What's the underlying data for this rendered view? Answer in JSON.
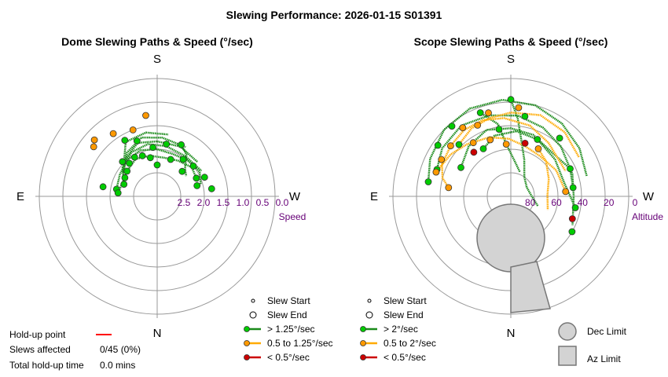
{
  "title": "Slewing Performance: 2026-01-15 S01391",
  "colors": {
    "fast": "#00cc00",
    "mid": "#ff9900",
    "slow": "#cc0000",
    "path_green": "#1a8a1a",
    "path_orange": "#ffaa00",
    "limit_fill": "#d3d3d3",
    "tick": "#660077"
  },
  "chart_data": [
    {
      "type": "polar-scatter",
      "title": "Dome Slewing Paths & Speed (°/sec)",
      "cardinals": {
        "top": "S",
        "bottom": "N",
        "left": "E",
        "right": "W"
      },
      "radial_axis_label": "Speed",
      "radial_ticks": [
        "2.5",
        "2.0",
        "1.5",
        "1.0",
        "0.5",
        "0.0"
      ],
      "legend": [
        {
          "label": "Slew Start",
          "kind": "start"
        },
        {
          "label": "Slew End",
          "kind": "end"
        },
        {
          "label": "> 1.25°/sec",
          "kind": "fast"
        },
        {
          "label": "0.5 to 1.25°/sec",
          "kind": "mid"
        },
        {
          "label": "< 0.5°/sec",
          "kind": "slow"
        }
      ],
      "points": [
        {
          "az": 180,
          "speed": 2.2,
          "cls": "fast"
        },
        {
          "az": 170,
          "speed": 2.0,
          "cls": "fast"
        },
        {
          "az": 160,
          "speed": 1.9,
          "cls": "fast"
        },
        {
          "az": 150,
          "speed": 1.85,
          "cls": "fast"
        },
        {
          "az": 140,
          "speed": 1.9,
          "cls": "fast"
        },
        {
          "az": 130,
          "speed": 2.0,
          "cls": "fast"
        },
        {
          "az": 120,
          "speed": 2.05,
          "cls": "fast"
        },
        {
          "az": 110,
          "speed": 2.1,
          "cls": "fast"
        },
        {
          "az": 100,
          "speed": 1.95,
          "cls": "fast"
        },
        {
          "az": 95,
          "speed": 2.0,
          "cls": "fast"
        },
        {
          "az": 200,
          "speed": 2.0,
          "cls": "fast"
        },
        {
          "az": 215,
          "speed": 1.85,
          "cls": "fast"
        },
        {
          "az": 230,
          "speed": 1.8,
          "cls": "fast"
        },
        {
          "az": 245,
          "speed": 1.9,
          "cls": "fast"
        },
        {
          "az": 255,
          "speed": 1.95,
          "cls": "fast"
        },
        {
          "az": 262,
          "speed": 1.6,
          "cls": "fast"
        },
        {
          "az": 248,
          "speed": 1.7,
          "cls": "fast"
        },
        {
          "az": 190,
          "speed": 1.65,
          "cls": "fast"
        },
        {
          "az": 175,
          "speed": 1.75,
          "cls": "fast"
        },
        {
          "az": 135,
          "speed": 1.75,
          "cls": "fast"
        },
        {
          "az": 160,
          "speed": 1.5,
          "cls": "fast"
        },
        {
          "az": 205,
          "speed": 1.55,
          "cls": "fast"
        },
        {
          "az": 225,
          "speed": 2.1,
          "cls": "fast"
        },
        {
          "az": 100,
          "speed": 1.6,
          "cls": "fast"
        },
        {
          "az": 150,
          "speed": 1.35,
          "cls": "fast"
        },
        {
          "az": 145,
          "speed": 1.05,
          "cls": "mid"
        },
        {
          "az": 128,
          "speed": 0.95,
          "cls": "mid"
        },
        {
          "az": 132,
          "speed": 0.85,
          "cls": "mid"
        },
        {
          "az": 172,
          "speed": 0.92,
          "cls": "mid"
        },
        {
          "az": 160,
          "speed": 1.2,
          "cls": "mid"
        }
      ],
      "paths": [
        {
          "cls": "fast",
          "pts": [
            [
              95,
              2.0
            ],
            [
              110,
              2.05
            ],
            [
              130,
              2.0
            ],
            [
              150,
              1.9
            ],
            [
              170,
              1.95
            ],
            [
              190,
              2.0
            ],
            [
              210,
              1.95
            ],
            [
              230,
              1.85
            ],
            [
              250,
              1.9
            ]
          ]
        },
        {
          "cls": "fast",
          "pts": [
            [
              100,
              1.95
            ],
            [
              120,
              1.9
            ],
            [
              140,
              1.8
            ],
            [
              160,
              1.75
            ],
            [
              180,
              1.8
            ],
            [
              200,
              1.85
            ],
            [
              220,
              1.8
            ],
            [
              240,
              1.75
            ],
            [
              255,
              1.85
            ]
          ]
        },
        {
          "cls": "fast",
          "pts": [
            [
              110,
              2.1
            ],
            [
              130,
              1.85
            ],
            [
              150,
              1.7
            ],
            [
              170,
              1.65
            ],
            [
              190,
              1.7
            ],
            [
              215,
              1.75
            ],
            [
              240,
              1.7
            ]
          ]
        },
        {
          "cls": "fast",
          "pts": [
            [
              120,
              2.0
            ],
            [
              140,
              1.75
            ],
            [
              160,
              1.55
            ],
            [
              180,
              1.6
            ],
            [
              205,
              1.6
            ],
            [
              230,
              1.65
            ]
          ]
        },
        {
          "cls": "fast",
          "pts": [
            [
              125,
              1.95
            ],
            [
              145,
              1.65
            ],
            [
              165,
              1.45
            ],
            [
              185,
              1.5
            ],
            [
              210,
              1.55
            ]
          ]
        },
        {
          "cls": "fast",
          "pts": [
            [
              135,
              1.8
            ],
            [
              150,
              1.4
            ],
            [
              170,
              1.35
            ],
            [
              190,
              1.4
            ]
          ]
        },
        {
          "cls": "fast",
          "pts": [
            [
              205,
              1.55
            ],
            [
              215,
              1.7
            ],
            [
              225,
              2.0
            ],
            [
              235,
              2.1
            ]
          ]
        }
      ]
    },
    {
      "type": "polar-scatter",
      "title": "Scope Slewing Paths & Speed (°/sec)",
      "cardinals": {
        "top": "S",
        "bottom": "N",
        "left": "E",
        "right": "W"
      },
      "radial_axis_label": "Altitude",
      "radial_ticks": [
        "80",
        "60",
        "40",
        "20",
        "0"
      ],
      "legend": [
        {
          "label": "Slew Start",
          "kind": "start"
        },
        {
          "label": "Slew End",
          "kind": "end"
        },
        {
          "label": "> 2°/sec",
          "kind": "fast"
        },
        {
          "label": "0.5 to 2°/sec",
          "kind": "mid"
        },
        {
          "label": "< 0.5°/sec",
          "kind": "slow"
        }
      ],
      "limits": [
        {
          "label": "Dec Limit",
          "kind": "dec"
        },
        {
          "label": "Az Limit",
          "kind": "az"
        }
      ],
      "points": [
        {
          "az": 180,
          "alt": 16,
          "cls": "fast"
        },
        {
          "az": 160,
          "alt": 22,
          "cls": "fast"
        },
        {
          "az": 140,
          "alt": 20,
          "cls": "fast"
        },
        {
          "az": 125,
          "alt": 22,
          "cls": "fast"
        },
        {
          "az": 110,
          "alt": 30,
          "cls": "fast"
        },
        {
          "az": 120,
          "alt": 46,
          "cls": "fast"
        },
        {
          "az": 150,
          "alt": 48,
          "cls": "fast"
        },
        {
          "az": 170,
          "alt": 38,
          "cls": "fast"
        },
        {
          "az": 190,
          "alt": 28,
          "cls": "fast"
        },
        {
          "az": 220,
          "alt": 32,
          "cls": "fast"
        },
        {
          "az": 245,
          "alt": 40,
          "cls": "fast"
        },
        {
          "az": 262,
          "alt": 42,
          "cls": "fast"
        },
        {
          "az": 280,
          "alt": 40,
          "cls": "fast"
        },
        {
          "az": 300,
          "alt": 36,
          "cls": "fast"
        },
        {
          "az": 100,
          "alt": 26,
          "cls": "fast"
        },
        {
          "az": 205,
          "alt": 42,
          "cls": "fast"
        },
        {
          "az": 135,
          "alt": 34,
          "cls": "fast"
        },
        {
          "az": 155,
          "alt": 30,
          "cls": "mid"
        },
        {
          "az": 145,
          "alt": 26,
          "cls": "mid"
        },
        {
          "az": 165,
          "alt": 24,
          "cls": "mid"
        },
        {
          "az": 185,
          "alt": 22,
          "cls": "mid"
        },
        {
          "az": 130,
          "alt": 30,
          "cls": "mid"
        },
        {
          "az": 118,
          "alt": 30,
          "cls": "mid"
        },
        {
          "az": 108,
          "alt": 30,
          "cls": "mid"
        },
        {
          "az": 98,
          "alt": 42,
          "cls": "mid"
        },
        {
          "az": 160,
          "alt": 44,
          "cls": "mid"
        },
        {
          "az": 175,
          "alt": 50,
          "cls": "mid"
        },
        {
          "az": 210,
          "alt": 48,
          "cls": "mid"
        },
        {
          "az": 265,
          "alt": 48,
          "cls": "mid"
        },
        {
          "az": 145,
          "alt": 40,
          "cls": "mid"
        },
        {
          "az": 140,
          "alt": 46,
          "cls": "slow"
        },
        {
          "az": 195,
          "alt": 48,
          "cls": "slow"
        },
        {
          "az": 290,
          "alt": 40,
          "cls": "slow"
        }
      ],
      "paths": [
        {
          "cls": "fast",
          "pts": [
            [
              100,
              26
            ],
            [
              115,
              22
            ],
            [
              135,
              18
            ],
            [
              155,
              16
            ],
            [
              175,
              16
            ],
            [
              195,
              18
            ],
            [
              215,
              22
            ],
            [
              235,
              26
            ],
            [
              255,
              30
            ]
          ]
        },
        {
          "cls": "fast",
          "pts": [
            [
              110,
              30
            ],
            [
              125,
              26
            ],
            [
              145,
              24
            ],
            [
              165,
              26
            ],
            [
              185,
              28
            ],
            [
              205,
              32
            ],
            [
              225,
              36
            ],
            [
              250,
              40
            ],
            [
              270,
              42
            ],
            [
              295,
              38
            ]
          ]
        },
        {
          "cls": "fast",
          "pts": [
            [
              120,
              46
            ],
            [
              140,
              40
            ],
            [
              160,
              36
            ],
            [
              180,
              38
            ],
            [
              200,
              40
            ],
            [
              220,
              44
            ],
            [
              245,
              40
            ],
            [
              262,
              42
            ]
          ]
        },
        {
          "cls": "fast",
          "pts": [
            [
              150,
              48
            ],
            [
              165,
              42
            ],
            [
              185,
              40
            ],
            [
              205,
              42
            ],
            [
              230,
              46
            ],
            [
              255,
              48
            ],
            [
              280,
              40
            ]
          ]
        },
        {
          "cls": "fast",
          "pts": [
            [
              180,
              16
            ],
            [
              185,
              30
            ],
            [
              190,
              45
            ],
            [
              200,
              60
            ],
            [
              215,
              72
            ],
            [
              240,
              76
            ],
            [
              270,
              74
            ],
            [
              290,
              68
            ]
          ]
        },
        {
          "cls": "fast",
          "pts": [
            [
              160,
              22
            ],
            [
              170,
              34
            ],
            [
              175,
              50
            ],
            [
              185,
              62
            ],
            [
              200,
              70
            ]
          ]
        },
        {
          "cls": "mid",
          "pts": [
            [
              98,
              42
            ],
            [
              105,
              36
            ],
            [
              115,
              32
            ],
            [
              130,
              30
            ],
            [
              145,
              28
            ],
            [
              160,
              28
            ],
            [
              175,
              30
            ],
            [
              195,
              34
            ],
            [
              215,
              40
            ],
            [
              245,
              44
            ]
          ]
        },
        {
          "cls": "mid",
          "pts": [
            [
              108,
              30
            ],
            [
              125,
              34
            ],
            [
              140,
              38
            ],
            [
              160,
              42
            ],
            [
              178,
              46
            ],
            [
              195,
              50
            ],
            [
              215,
              52
            ],
            [
              240,
              50
            ],
            [
              265,
              48
            ]
          ]
        },
        {
          "cls": "mid",
          "pts": [
            [
              135,
              34
            ],
            [
              150,
              30
            ],
            [
              165,
              28
            ],
            [
              180,
              26
            ],
            [
              200,
              24
            ],
            [
              220,
              26
            ],
            [
              240,
              30
            ]
          ]
        },
        {
          "cls": "mid",
          "pts": [
            [
              210,
              48
            ],
            [
              225,
              52
            ],
            [
              245,
              58
            ],
            [
              268,
              62
            ],
            [
              290,
              60
            ]
          ]
        }
      ]
    }
  ],
  "legend_markers": {
    "start_label": "Slew Start",
    "end_label": "Slew End"
  },
  "stats": {
    "holdup_label": "Hold-up point",
    "slews_label": "Slews affected",
    "slews_value": "0/45 (0%)",
    "total_label": "Total hold-up time",
    "total_value": "0.0 mins"
  }
}
